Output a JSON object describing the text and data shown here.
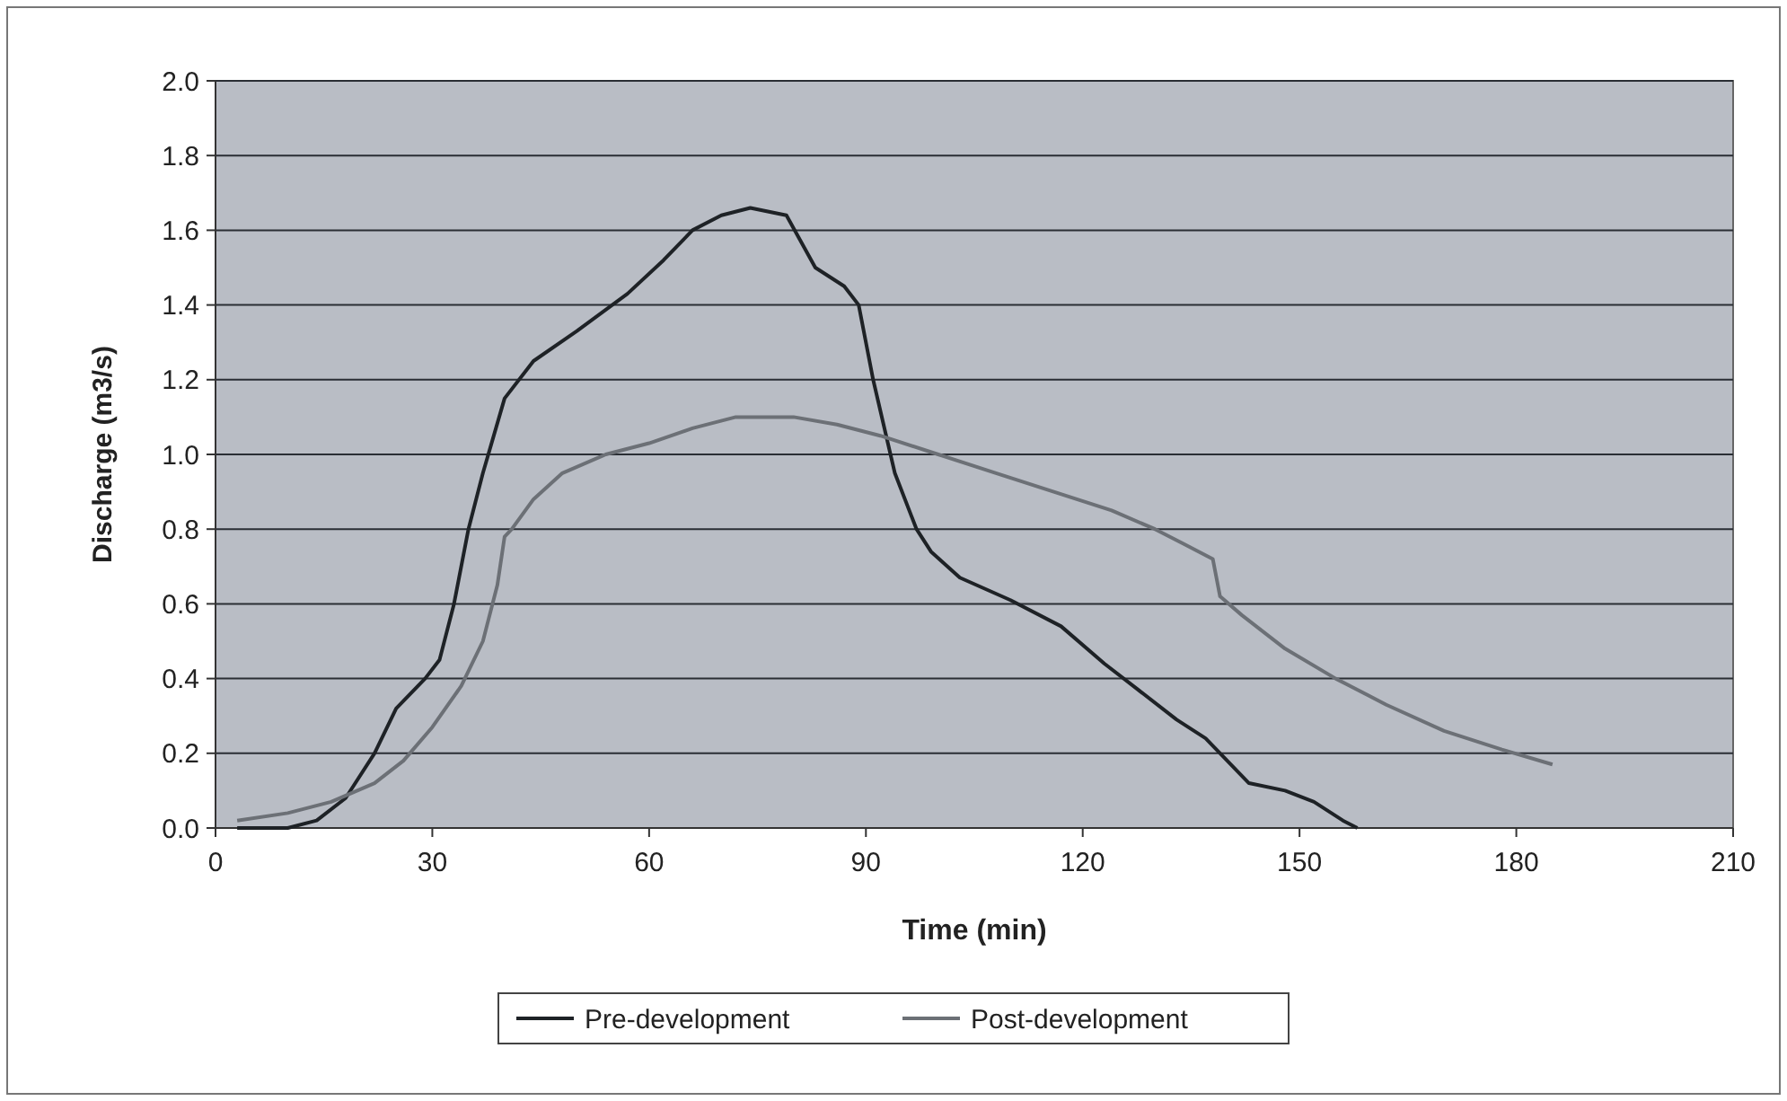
{
  "chart_data": {
    "type": "line",
    "xlabel": "Time (min)",
    "ylabel": "Discharge (m3/s)",
    "xlim": [
      0,
      210
    ],
    "xticks": [
      0,
      30,
      60,
      90,
      120,
      150,
      180,
      210
    ],
    "ylim": [
      0,
      2
    ],
    "yticks": [
      {
        "value": 0,
        "label": "0.0"
      },
      {
        "value": 0.2,
        "label": "0.2"
      },
      {
        "value": 0.4,
        "label": "0.4"
      },
      {
        "value": 0.6,
        "label": "0.6"
      },
      {
        "value": 0.8,
        "label": "0.8"
      },
      {
        "value": 1,
        "label": "1.0"
      },
      {
        "value": 1.2,
        "label": "1.2"
      },
      {
        "value": 1.4,
        "label": "1.4"
      },
      {
        "value": 1.6,
        "label": "1.6"
      },
      {
        "value": 1.8,
        "label": "1.8"
      },
      {
        "value": 2,
        "label": "2.0"
      }
    ],
    "grid": "y",
    "legend": "bottom",
    "marker": "none",
    "line_style": "solid",
    "series": [
      {
        "name": "Pre-development",
        "color": "#1e2226",
        "x": [
          3,
          10,
          14,
          18,
          22,
          25,
          29,
          31,
          33,
          35,
          37,
          40,
          44,
          50,
          57,
          62,
          66,
          70,
          74,
          79,
          83,
          87,
          89,
          91,
          94,
          97,
          99,
          103,
          110,
          117,
          123,
          127,
          133,
          137,
          140,
          143,
          148,
          152,
          156,
          158
        ],
        "values": [
          0.0,
          0.0,
          0.02,
          0.08,
          0.2,
          0.32,
          0.4,
          0.45,
          0.6,
          0.8,
          0.95,
          1.15,
          1.25,
          1.33,
          1.43,
          1.52,
          1.6,
          1.64,
          1.66,
          1.64,
          1.5,
          1.45,
          1.4,
          1.2,
          0.95,
          0.8,
          0.74,
          0.67,
          0.61,
          0.54,
          0.44,
          0.38,
          0.29,
          0.24,
          0.18,
          0.12,
          0.1,
          0.07,
          0.02,
          0.0
        ]
      },
      {
        "name": "Post-development",
        "color": "#6c7076",
        "x": [
          3,
          10,
          16,
          22,
          26,
          30,
          34,
          37,
          39,
          40,
          41,
          44,
          48,
          54,
          60,
          66,
          72,
          80,
          86,
          92,
          100,
          108,
          116,
          124,
          130,
          134,
          138,
          139,
          142,
          148,
          155,
          162,
          170,
          178,
          185
        ],
        "values": [
          0.02,
          0.04,
          0.07,
          0.12,
          0.18,
          0.27,
          0.38,
          0.5,
          0.65,
          0.78,
          0.8,
          0.88,
          0.95,
          1.0,
          1.03,
          1.07,
          1.1,
          1.1,
          1.08,
          1.05,
          1.0,
          0.95,
          0.9,
          0.85,
          0.8,
          0.76,
          0.72,
          0.62,
          0.57,
          0.48,
          0.4,
          0.33,
          0.26,
          0.21,
          0.17
        ]
      }
    ]
  }
}
